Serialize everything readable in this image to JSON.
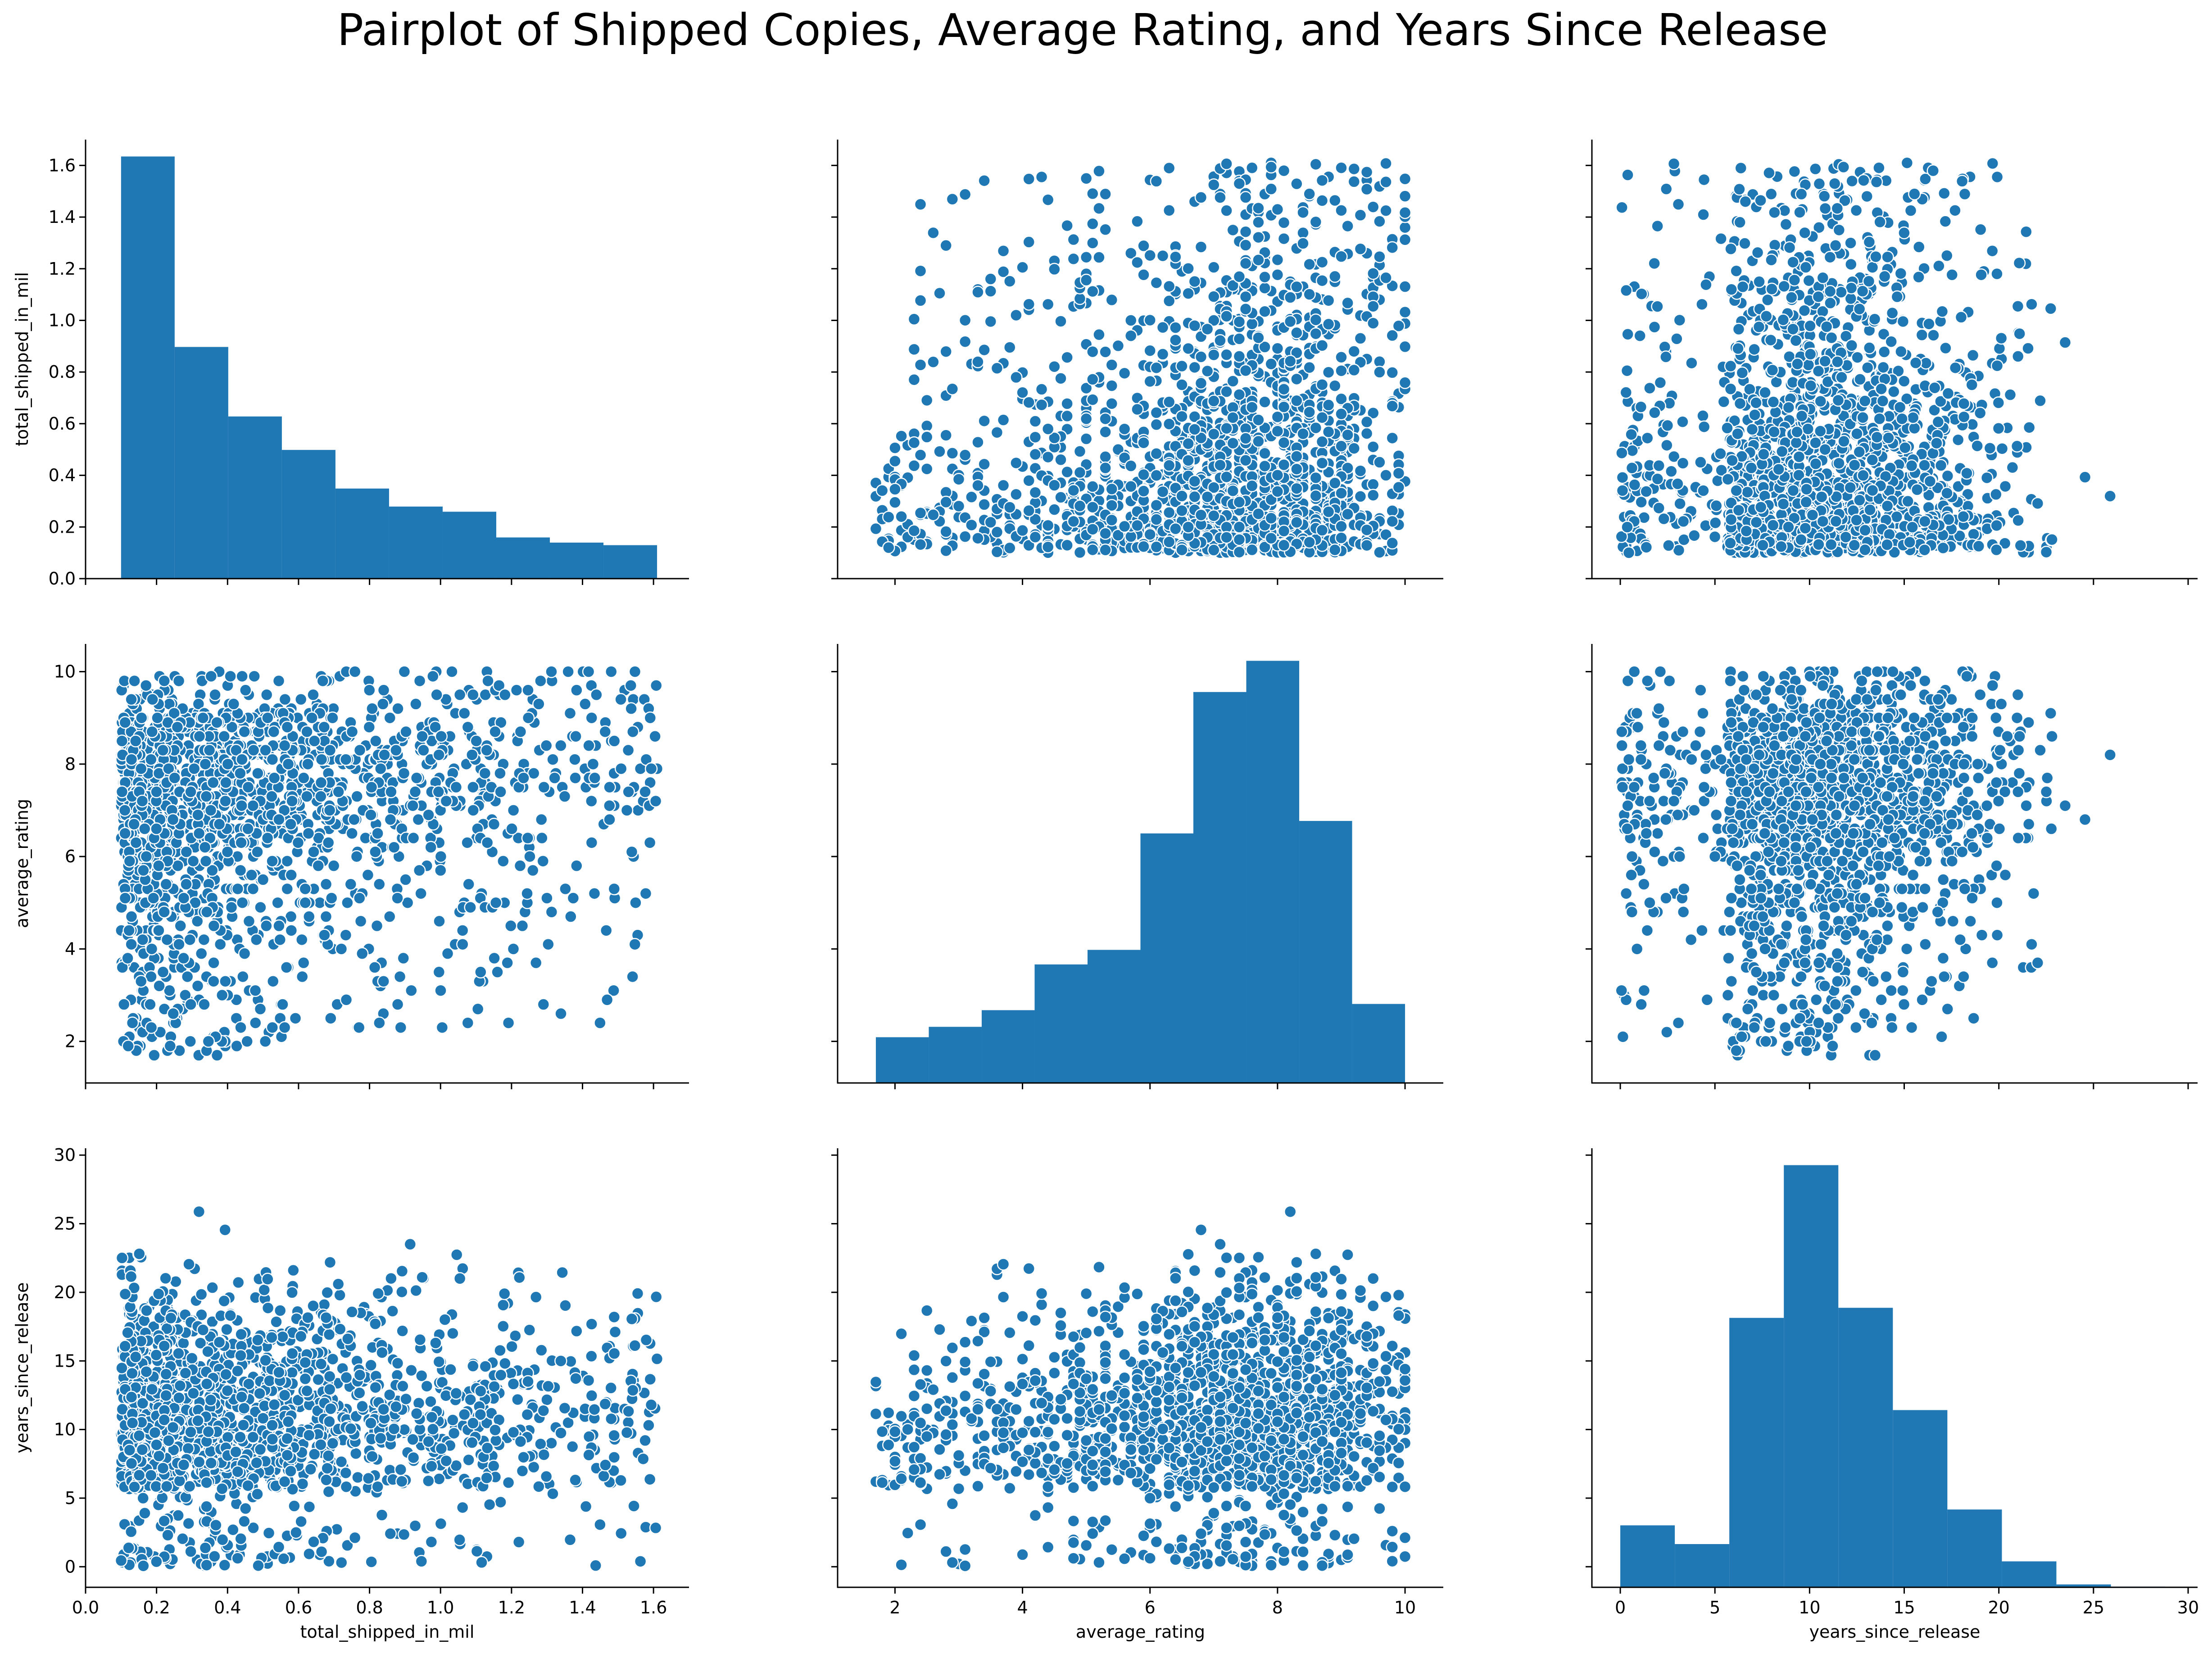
{
  "chart_data": {
    "type": "pairplot",
    "title": "Pairplot of Shipped Copies, Average Rating, and Years Since Release",
    "variables": [
      "total_shipped_in_mil",
      "average_rating",
      "years_since_release"
    ],
    "point_color": "#1f77b4",
    "point_edge_color": "#ffffff",
    "axes": {
      "total_shipped_in_mil": {
        "range": [
          0.0,
          1.7
        ],
        "ticks": [
          0.0,
          0.2,
          0.4,
          0.6,
          0.8,
          1.0,
          1.2,
          1.4,
          1.6
        ],
        "tick_labels": [
          "0.0",
          "0.2",
          "0.4",
          "0.6",
          "0.8",
          "1.0",
          "1.2",
          "1.4",
          "1.6"
        ]
      },
      "average_rating": {
        "range": [
          1.1,
          10.6
        ],
        "ticks": [
          2,
          4,
          6,
          8,
          10
        ],
        "tick_labels": [
          "2",
          "4",
          "6",
          "8",
          "10"
        ]
      },
      "years_since_release": {
        "range": [
          -1.5,
          30.5
        ],
        "ticks": [
          0,
          5,
          10,
          15,
          20,
          25,
          30
        ],
        "tick_labels": [
          "0",
          "5",
          "10",
          "15",
          "20",
          "25",
          "30"
        ]
      }
    },
    "histograms": {
      "total_shipped_in_mil": {
        "bin_edges": [
          0.1,
          0.251,
          0.402,
          0.553,
          0.704,
          0.855,
          1.006,
          1.157,
          1.308,
          1.459,
          1.61
        ],
        "heights": [
          1.64,
          0.9,
          0.63,
          0.5,
          0.35,
          0.28,
          0.26,
          0.16,
          0.14,
          0.13
        ]
      },
      "average_rating": {
        "bin_edges": [
          1.7,
          2.53,
          3.36,
          4.19,
          5.02,
          5.85,
          6.68,
          7.51,
          8.34,
          9.17,
          10.0
        ],
        "heights": [
          1.1,
          1.35,
          1.75,
          2.85,
          3.2,
          6.0,
          9.4,
          10.15,
          6.3,
          1.9
        ]
      },
      "years_since_release": {
        "bin_edges": [
          0.0,
          2.88,
          5.76,
          8.64,
          11.52,
          14.4,
          17.28,
          20.16,
          23.04,
          25.92,
          28.8
        ],
        "heights": [
          4.3,
          3.0,
          18.7,
          29.3,
          19.4,
          12.3,
          5.4,
          1.8,
          0.2,
          0.05
        ]
      }
    }
  }
}
